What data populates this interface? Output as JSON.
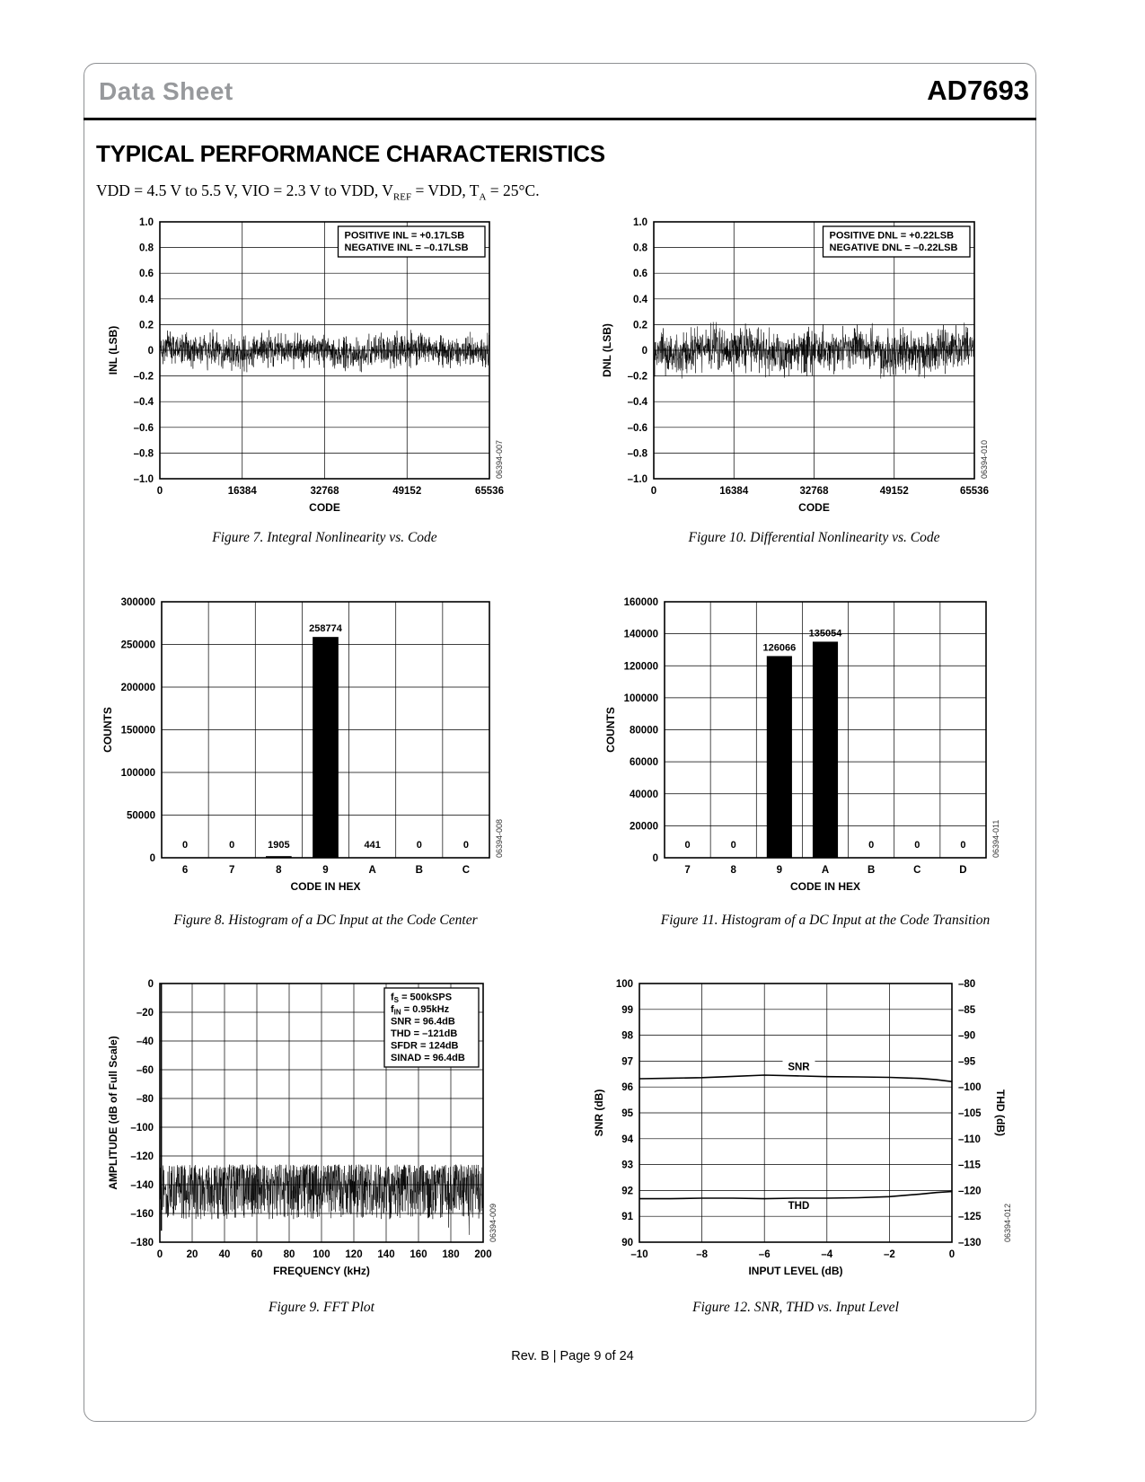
{
  "page": {
    "header": {
      "doc_type": "Data Sheet",
      "part_number": "AD7693"
    },
    "title": "TYPICAL PERFORMANCE CHARACTERISTICS",
    "conditions_segments": [
      {
        "t": "VDD = 4.5 V to 5.5 V, VIO = 2.3 V to VDD, V"
      },
      {
        "t": "REF",
        "sub": true
      },
      {
        "t": " = VDD, T"
      },
      {
        "t": "A",
        "sub": true
      },
      {
        "t": " = 25°C."
      }
    ],
    "footer": "Rev. B | Page 9 of 24"
  },
  "chart_data": [
    {
      "id": "fig7",
      "type": "noise",
      "caption": "Figure 7. Integral Nonlinearity vs. Code",
      "watermark": "06394-007",
      "xlabel": "CODE",
      "ylabel": "INL (LSB)",
      "x_range": [
        0,
        65536
      ],
      "x_ticks": [
        0,
        16384,
        32768,
        49152,
        65536
      ],
      "x_tick_labels": [
        "0",
        "16384",
        "32768",
        "49152",
        "65536"
      ],
      "y_range": [
        -1,
        1
      ],
      "y_ticks": [
        1,
        0.8,
        0.6,
        0.4,
        0.2,
        0,
        -0.2,
        -0.4,
        -0.6,
        -0.8,
        -1
      ],
      "y_tick_labels": [
        "1.0",
        "0.8",
        "0.6",
        "0.4",
        "0.2",
        "0",
        "–0.2",
        "–0.4",
        "–0.6",
        "–0.8",
        "–1.0"
      ],
      "grid": true,
      "annotation": {
        "lines": [
          "POSITIVE INL = +0.17LSB",
          "NEGATIVE INL = –0.17LSB"
        ]
      },
      "noise": {
        "seed": 7,
        "amp": 0.17
      },
      "summary": {
        "positive_inl_lsb": 0.17,
        "negative_inl_lsb": -0.17
      }
    },
    {
      "id": "fig10",
      "type": "noise",
      "caption": "Figure 10. Differential Nonlinearity vs. Code",
      "watermark": "06394-010",
      "xlabel": "CODE",
      "ylabel": "DNL (LSB)",
      "x_range": [
        0,
        65536
      ],
      "x_ticks": [
        0,
        16384,
        32768,
        49152,
        65536
      ],
      "x_tick_labels": [
        "0",
        "16384",
        "32768",
        "49152",
        "65536"
      ],
      "y_range": [
        -1,
        1
      ],
      "y_ticks": [
        1,
        0.8,
        0.6,
        0.4,
        0.2,
        0,
        -0.2,
        -0.4,
        -0.6,
        -0.8,
        -1
      ],
      "y_tick_labels": [
        "1.0",
        "0.8",
        "0.6",
        "0.4",
        "0.2",
        "0",
        "–0.2",
        "–0.4",
        "–0.6",
        "–0.8",
        "–1.0"
      ],
      "grid": true,
      "annotation": {
        "lines": [
          "POSITIVE DNL = +0.22LSB",
          "NEGATIVE DNL = –0.22LSB"
        ]
      },
      "noise": {
        "seed": 10,
        "amp": 0.22
      },
      "summary": {
        "positive_dnl_lsb": 0.22,
        "negative_dnl_lsb": -0.22
      }
    },
    {
      "id": "fig8",
      "type": "histogram",
      "caption": "Figure 8. Histogram of a DC Input at the Code Center",
      "watermark": "06394-008",
      "xlabel": "CODE IN HEX",
      "ylabel": "COUNTS",
      "categories": [
        "6",
        "7",
        "8",
        "9",
        "A",
        "B",
        "C"
      ],
      "values": [
        0,
        0,
        1905,
        258774,
        441,
        0,
        0
      ],
      "value_labels": [
        "0",
        "0",
        "1905",
        "258774",
        "441",
        "0",
        "0"
      ],
      "y_range": [
        0,
        300000
      ],
      "y_ticks": [
        0,
        50000,
        100000,
        150000,
        200000,
        250000,
        300000
      ],
      "y_tick_labels": [
        "0",
        "50000",
        "100000",
        "150000",
        "200000",
        "250000",
        "300000"
      ],
      "grid": true
    },
    {
      "id": "fig11",
      "type": "histogram",
      "caption": "Figure 11. Histogram of a DC Input at the Code Transition",
      "watermark": "06394-011",
      "xlabel": "CODE IN HEX",
      "ylabel": "COUNTS",
      "categories": [
        "7",
        "8",
        "9",
        "A",
        "B",
        "C",
        "D"
      ],
      "values": [
        0,
        0,
        126066,
        135054,
        0,
        0,
        0
      ],
      "value_labels": [
        "0",
        "0",
        "126066",
        "135054",
        "0",
        "0",
        "0"
      ],
      "y_range": [
        0,
        160000
      ],
      "y_ticks": [
        0,
        20000,
        40000,
        60000,
        80000,
        100000,
        120000,
        140000,
        160000
      ],
      "y_tick_labels": [
        "0",
        "20000",
        "40000",
        "60000",
        "80000",
        "100000",
        "120000",
        "140000",
        "160000"
      ],
      "grid": true
    },
    {
      "id": "fig9",
      "type": "fft",
      "caption": "Figure 9. FFT Plot",
      "watermark": "06394-009",
      "xlabel": "FREQUENCY (kHz)",
      "ylabel": "AMPLITUDE (dB of Full Scale)",
      "x_range": [
        0,
        200
      ],
      "x_ticks": [
        0,
        20,
        40,
        60,
        80,
        100,
        120,
        140,
        160,
        180,
        200
      ],
      "x_tick_labels": [
        "0",
        "20",
        "40",
        "60",
        "80",
        "100",
        "120",
        "140",
        "160",
        "180",
        "200"
      ],
      "y_range": [
        -180,
        0
      ],
      "y_ticks": [
        0,
        -20,
        -40,
        -60,
        -80,
        -100,
        -120,
        -140,
        -160,
        -180
      ],
      "y_tick_labels": [
        "0",
        "–20",
        "–40",
        "–60",
        "–80",
        "–100",
        "–120",
        "–140",
        "–160",
        "–180"
      ],
      "grid": true,
      "annotation": {
        "lines": [
          [
            {
              "t": "f"
            },
            {
              "t": "S",
              "sub": true
            },
            {
              "t": " = 500kSPS"
            }
          ],
          [
            {
              "t": "f"
            },
            {
              "t": "IN",
              "sub": true
            },
            {
              "t": " = 0.95kHz"
            }
          ],
          "SNR = 96.4dB",
          "THD = –121dB",
          "SFDR = 124dB",
          "SINAD = 96.4dB"
        ]
      },
      "noise": {
        "seed": 9,
        "top": -126,
        "depth": 38
      },
      "spike": {
        "x": 0.95,
        "top": 0
      },
      "summary": {
        "fs_ksps": 500,
        "fin_khz": 0.95,
        "snr_db": 96.4,
        "thd_db": -121,
        "sfdr_db": 124,
        "sinad_db": 96.4
      }
    },
    {
      "id": "fig12",
      "type": "dual-line",
      "caption": "Figure 12. SNR, THD vs. Input Level",
      "watermark": "06394-012",
      "xlabel": "INPUT LEVEL (dB)",
      "ylabel": "SNR (dB)",
      "ylabel_right": "THD (dB)",
      "x_range": [
        -10,
        0
      ],
      "x_ticks": [
        -10,
        -8,
        -6,
        -4,
        -2,
        0
      ],
      "x_tick_labels": [
        "–10",
        "–8",
        "–6",
        "–4",
        "–2",
        "0"
      ],
      "y_range": [
        90,
        100
      ],
      "y_ticks": [
        100,
        99,
        98,
        97,
        96,
        95,
        94,
        93,
        92,
        91,
        90
      ],
      "y_tick_labels": [
        "100",
        "99",
        "98",
        "97",
        "96",
        "95",
        "94",
        "93",
        "92",
        "91",
        "90"
      ],
      "y2_range": [
        -130,
        -80
      ],
      "y2_ticks": [
        -80,
        -85,
        -90,
        -95,
        -100,
        -105,
        -110,
        -115,
        -120,
        -125,
        -130
      ],
      "y2_tick_labels": [
        "–80",
        "–85",
        "–90",
        "–95",
        "–100",
        "–105",
        "–110",
        "–115",
        "–120",
        "–125",
        "–130"
      ],
      "grid": true,
      "series": [
        {
          "name": "SNR",
          "axis": "left",
          "points": [
            [
              -10,
              96.32
            ],
            [
              -9,
              96.34
            ],
            [
              -8,
              96.36
            ],
            [
              -7,
              96.41
            ],
            [
              -6,
              96.46
            ],
            [
              -5,
              96.43
            ],
            [
              -4,
              96.4
            ],
            [
              -3,
              96.39
            ],
            [
              -2,
              96.37
            ],
            [
              -1,
              96.33
            ],
            [
              -0.5,
              96.28
            ],
            [
              0,
              96.21
            ]
          ]
        },
        {
          "name": "THD",
          "axis": "right",
          "points": [
            [
              -10,
              -121.6
            ],
            [
              -9,
              -121.6
            ],
            [
              -8,
              -121.5
            ],
            [
              -7,
              -121.5
            ],
            [
              -6,
              -121.6
            ],
            [
              -5,
              -121.5
            ],
            [
              -4,
              -121.5
            ],
            [
              -3,
              -121.4
            ],
            [
              -2,
              -121.2
            ],
            [
              -1,
              -120.7
            ],
            [
              -0.5,
              -120.4
            ],
            [
              0,
              -120.2
            ]
          ]
        }
      ],
      "series_labels": [
        {
          "text": "SNR",
          "x": -4.9,
          "axis": "left",
          "y": 96.78
        },
        {
          "text": "THD",
          "x": -4.9,
          "axis": "right",
          "y": -122.9
        }
      ]
    }
  ]
}
